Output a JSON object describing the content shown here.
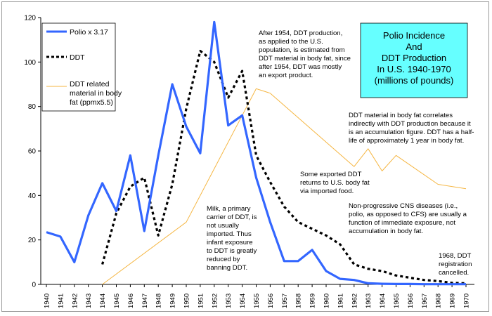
{
  "chart_data": {
    "type": "line",
    "title": [
      "Polio Incidence",
      "And",
      "DDT Production",
      "In U.S. 1940-1970",
      "(millions of pounds)"
    ],
    "ylim": [
      0,
      120
    ],
    "yticks": [
      0,
      20,
      40,
      60,
      80,
      100,
      120
    ],
    "x": [
      1940,
      1941,
      1942,
      1943,
      1944,
      1945,
      1946,
      1947,
      1948,
      1949,
      1950,
      1951,
      1952,
      1953,
      1954,
      1955,
      1956,
      1957,
      1958,
      1959,
      1960,
      1961,
      1962,
      1963,
      1964,
      1965,
      1966,
      1967,
      1968,
      1969,
      1970
    ],
    "series": [
      {
        "name": "Polio x 3.17",
        "color": "#3366ff",
        "style": "solid-thick",
        "values": [
          [
            1940,
            23.5
          ],
          [
            1941,
            21.5
          ],
          [
            1942,
            10
          ],
          [
            1943,
            31
          ],
          [
            1944,
            45.5
          ],
          [
            1945,
            33
          ],
          [
            1946,
            58
          ],
          [
            1947,
            24
          ],
          [
            1948,
            58
          ],
          [
            1949,
            90
          ],
          [
            1950,
            71
          ],
          [
            1951,
            59
          ],
          [
            1952,
            118
          ],
          [
            1953,
            71.5
          ],
          [
            1954,
            76
          ],
          [
            1955,
            48
          ],
          [
            1956,
            28
          ],
          [
            1957,
            10.5
          ],
          [
            1958,
            10.5
          ],
          [
            1959,
            15.5
          ],
          [
            1960,
            6
          ],
          [
            1961,
            2.5
          ],
          [
            1962,
            2
          ],
          [
            1963,
            0.5
          ],
          [
            1964,
            0.3
          ],
          [
            1965,
            0.2
          ],
          [
            1966,
            0.2
          ],
          [
            1967,
            0.1
          ],
          [
            1968,
            0.1
          ],
          [
            1969,
            0.1
          ],
          [
            1970,
            0.1
          ]
        ]
      },
      {
        "name": "DDT",
        "color": "#000000",
        "style": "dotted",
        "values": [
          [
            1944,
            9
          ],
          [
            1945,
            32
          ],
          [
            1946,
            44
          ],
          [
            1947,
            48
          ],
          [
            1948,
            22
          ],
          [
            1949,
            45
          ],
          [
            1950,
            79
          ],
          [
            1951,
            105
          ],
          [
            1952,
            100
          ],
          [
            1953,
            84
          ],
          [
            1954,
            96
          ],
          [
            1955,
            58
          ],
          [
            1956,
            46
          ],
          [
            1957,
            35
          ],
          [
            1958,
            28
          ],
          [
            1959,
            25
          ],
          [
            1960,
            22
          ],
          [
            1961,
            18
          ],
          [
            1962,
            9
          ],
          [
            1963,
            7
          ],
          [
            1964,
            6
          ],
          [
            1965,
            4
          ],
          [
            1966,
            3
          ],
          [
            1967,
            2
          ],
          [
            1968,
            1.5
          ],
          [
            1969,
            0.7
          ],
          [
            1970,
            0.5
          ]
        ]
      },
      {
        "name": "DDT related material in body fat (ppmx5.5)",
        "color": "#f5b642",
        "style": "thin",
        "values": [
          [
            1944,
            0
          ],
          [
            1950,
            28
          ],
          [
            1954,
            76
          ],
          [
            1955,
            88
          ],
          [
            1956,
            86
          ],
          [
            1962,
            53
          ],
          [
            1963,
            61
          ],
          [
            1964,
            51
          ],
          [
            1965,
            58
          ],
          [
            1968,
            45
          ],
          [
            1970,
            43
          ]
        ]
      }
    ],
    "annotations": [
      [
        "After 1954, DDT production,",
        "as applied to the U.S.",
        "population, is estimated from",
        "DDT material in body fat, since",
        "after 1954, DDT was mostly",
        "an export product."
      ],
      [
        "DDT material in body fat correlates",
        "indirectly with DDT production because it",
        "is an accumulation figure. DDT has a half-",
        "life of approximately 1 year in body fat."
      ],
      [
        "Some exported DDT",
        "returns to U.S. body fat",
        "via imported food."
      ],
      [
        "Non-progressive CNS diseases (i.e.,",
        "polio, as opposed to CFS) are usually a",
        "function of immediate exposure, not",
        "accumulation in body fat."
      ],
      [
        "Milk, a primary",
        "carrier of DDT, is",
        "not usually",
        "imported. Thus",
        "infant exposure",
        "to DDT is greatly",
        "reduced by",
        "banning DDT."
      ],
      [
        "1968, DDT",
        "registration",
        "cancelled."
      ]
    ],
    "colors": {
      "title_box_fill": "#66ffff",
      "polio_line": "#3366ff",
      "ddt_line": "#000000",
      "fat_line": "#f5b642"
    }
  }
}
